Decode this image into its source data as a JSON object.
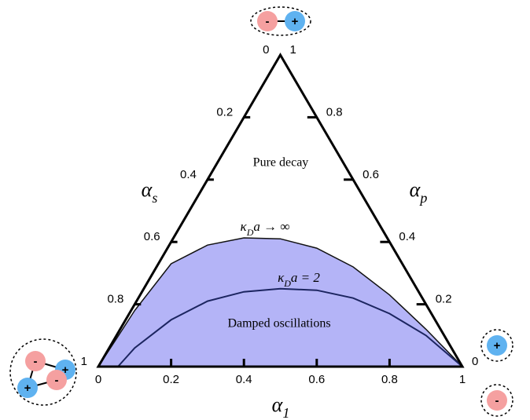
{
  "chart_data": {
    "type": "ternary",
    "xlabel": [
      "α",
      "1"
    ],
    "left_label": [
      "α",
      "s"
    ],
    "right_label": [
      "α",
      "p"
    ],
    "xticks": [
      0,
      0.2,
      0.4,
      0.6,
      0.8,
      1
    ],
    "left_ticks": [
      0,
      0.2,
      0.4,
      0.6,
      0.8,
      1
    ],
    "right_ticks": [
      0,
      0.2,
      0.4,
      0.6,
      0.8,
      1
    ],
    "region_labels": [
      "Pure decay",
      "Damped oscillations"
    ],
    "series": [
      {
        "label": [
          "κ",
          "D",
          "a → ∞"
        ],
        "color": "#b4b4f7",
        "x": [
          0,
          0.05,
          0.1,
          0.2,
          0.3,
          0.4,
          0.5,
          0.6,
          0.7,
          0.8,
          0.9,
          1
        ],
        "values": [
          0,
          0.09,
          0.18,
          0.33,
          0.39,
          0.413,
          0.41,
          0.38,
          0.32,
          0.23,
          0.12,
          0
        ]
      },
      {
        "label": [
          "κ",
          "D",
          "a = 2"
        ],
        "color": "#1c2560",
        "x": [
          0.054,
          0.1,
          0.2,
          0.3,
          0.4,
          0.5,
          0.6,
          0.7,
          0.8,
          0.9,
          0.95,
          1
        ],
        "values": [
          0,
          0.06,
          0.15,
          0.21,
          0.24,
          0.25,
          0.245,
          0.22,
          0.17,
          0.1,
          0.05,
          0
        ]
      }
    ],
    "negative_color": "#f5a0a0",
    "positive_color": "#5fb2f0",
    "icons": [
      {
        "charges": [
          "-",
          "+"
        ]
      },
      {
        "charges": [
          "-",
          "+",
          "+",
          "-"
        ]
      },
      {
        "charges": [
          "+"
        ]
      },
      {
        "charges": [
          "-"
        ]
      }
    ]
  }
}
